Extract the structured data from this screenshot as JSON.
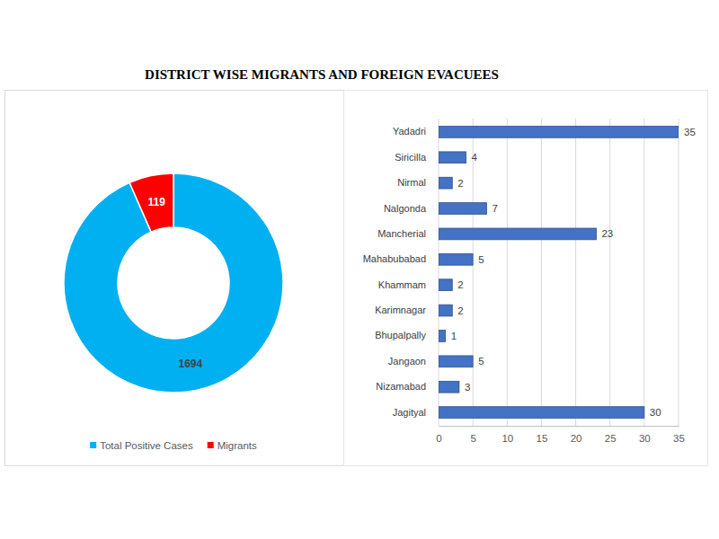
{
  "title": "DISTRICT WISE MIGRANTS AND FOREIGN EVACUEES",
  "chart_data": [
    {
      "type": "donut",
      "categories": [
        "Total Positive Cases",
        "Migrants"
      ],
      "values": [
        1694,
        119
      ],
      "colors": [
        "#00b0f0",
        "#ff0000"
      ],
      "data_labels": true,
      "legend": "bottom"
    },
    {
      "type": "bar",
      "orientation": "horizontal",
      "categories": [
        "Yadadri",
        "Siricilla",
        "Nirmal",
        "Nalgonda",
        "Mancherial",
        "Mahabubabad",
        "Khammam",
        "Karimnagar",
        "Bhupalpally",
        "Jangaon",
        "Nizamabad",
        "Jagityal"
      ],
      "values": [
        35,
        4,
        2,
        7,
        23,
        5,
        2,
        2,
        1,
        5,
        3,
        30
      ],
      "color": "#4472c4",
      "xlim": [
        0,
        35
      ],
      "xticks": [
        0,
        5,
        10,
        15,
        20,
        25,
        30,
        35
      ],
      "grid": true,
      "data_labels": true
    }
  ]
}
